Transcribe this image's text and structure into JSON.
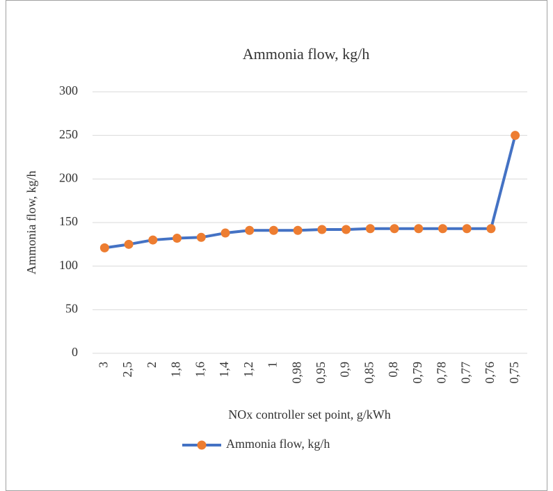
{
  "chart_data": {
    "type": "line",
    "title": "Ammonia flow, kg/h",
    "x_label": "NOx controller set point, g/kWh",
    "y_label": "Ammonia flow, kg/h",
    "categories": [
      "3",
      "2,5",
      "2",
      "1,8",
      "1,6",
      "1,4",
      "1,2",
      "1",
      "0,98",
      "0,95",
      "0,9",
      "0,85",
      "0,8",
      "0,79",
      "0,78",
      "0,77",
      "0,76",
      "0,75"
    ],
    "series": [
      {
        "name": "Ammonia flow, kg/h",
        "color": "#4472c4",
        "marker_color": "#ed7d31",
        "values": [
          121,
          125,
          130,
          132,
          133,
          138,
          141,
          141,
          141,
          142,
          142,
          143,
          143,
          143,
          143,
          143,
          143,
          250
        ]
      }
    ],
    "ylim": [
      0,
      300
    ],
    "yticks": [
      0,
      50,
      100,
      150,
      200,
      250,
      300
    ],
    "grid": true,
    "legend": "bottom"
  }
}
